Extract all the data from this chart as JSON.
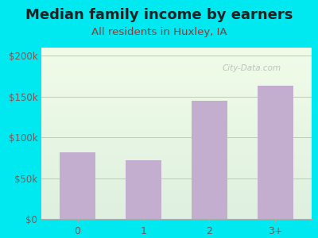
{
  "title": "Median family income by earners",
  "subtitle": "All residents in Huxley, IA",
  "categories": [
    "0",
    "1",
    "2",
    "3+"
  ],
  "values": [
    82000,
    72000,
    145000,
    163000
  ],
  "bar_color": "#c4aed0",
  "background_outer": "#00e8f0",
  "background_inner_top": "#dff0e0",
  "background_inner_bottom": "#f0fce8",
  "title_color": "#222222",
  "subtitle_color": "#8b3a3a",
  "tick_label_color": "#7a5a5a",
  "ytick_labels": [
    "$0",
    "$50k",
    "$100k",
    "$150k",
    "$200k"
  ],
  "ytick_values": [
    0,
    50000,
    100000,
    150000,
    200000
  ],
  "ylim": [
    0,
    210000
  ],
  "watermark": "City-Data.com",
  "grid_color": "#c0c8b8",
  "title_fontsize": 13,
  "subtitle_fontsize": 9.5,
  "tick_fontsize": 8.5,
  "xtick_fontsize": 9
}
